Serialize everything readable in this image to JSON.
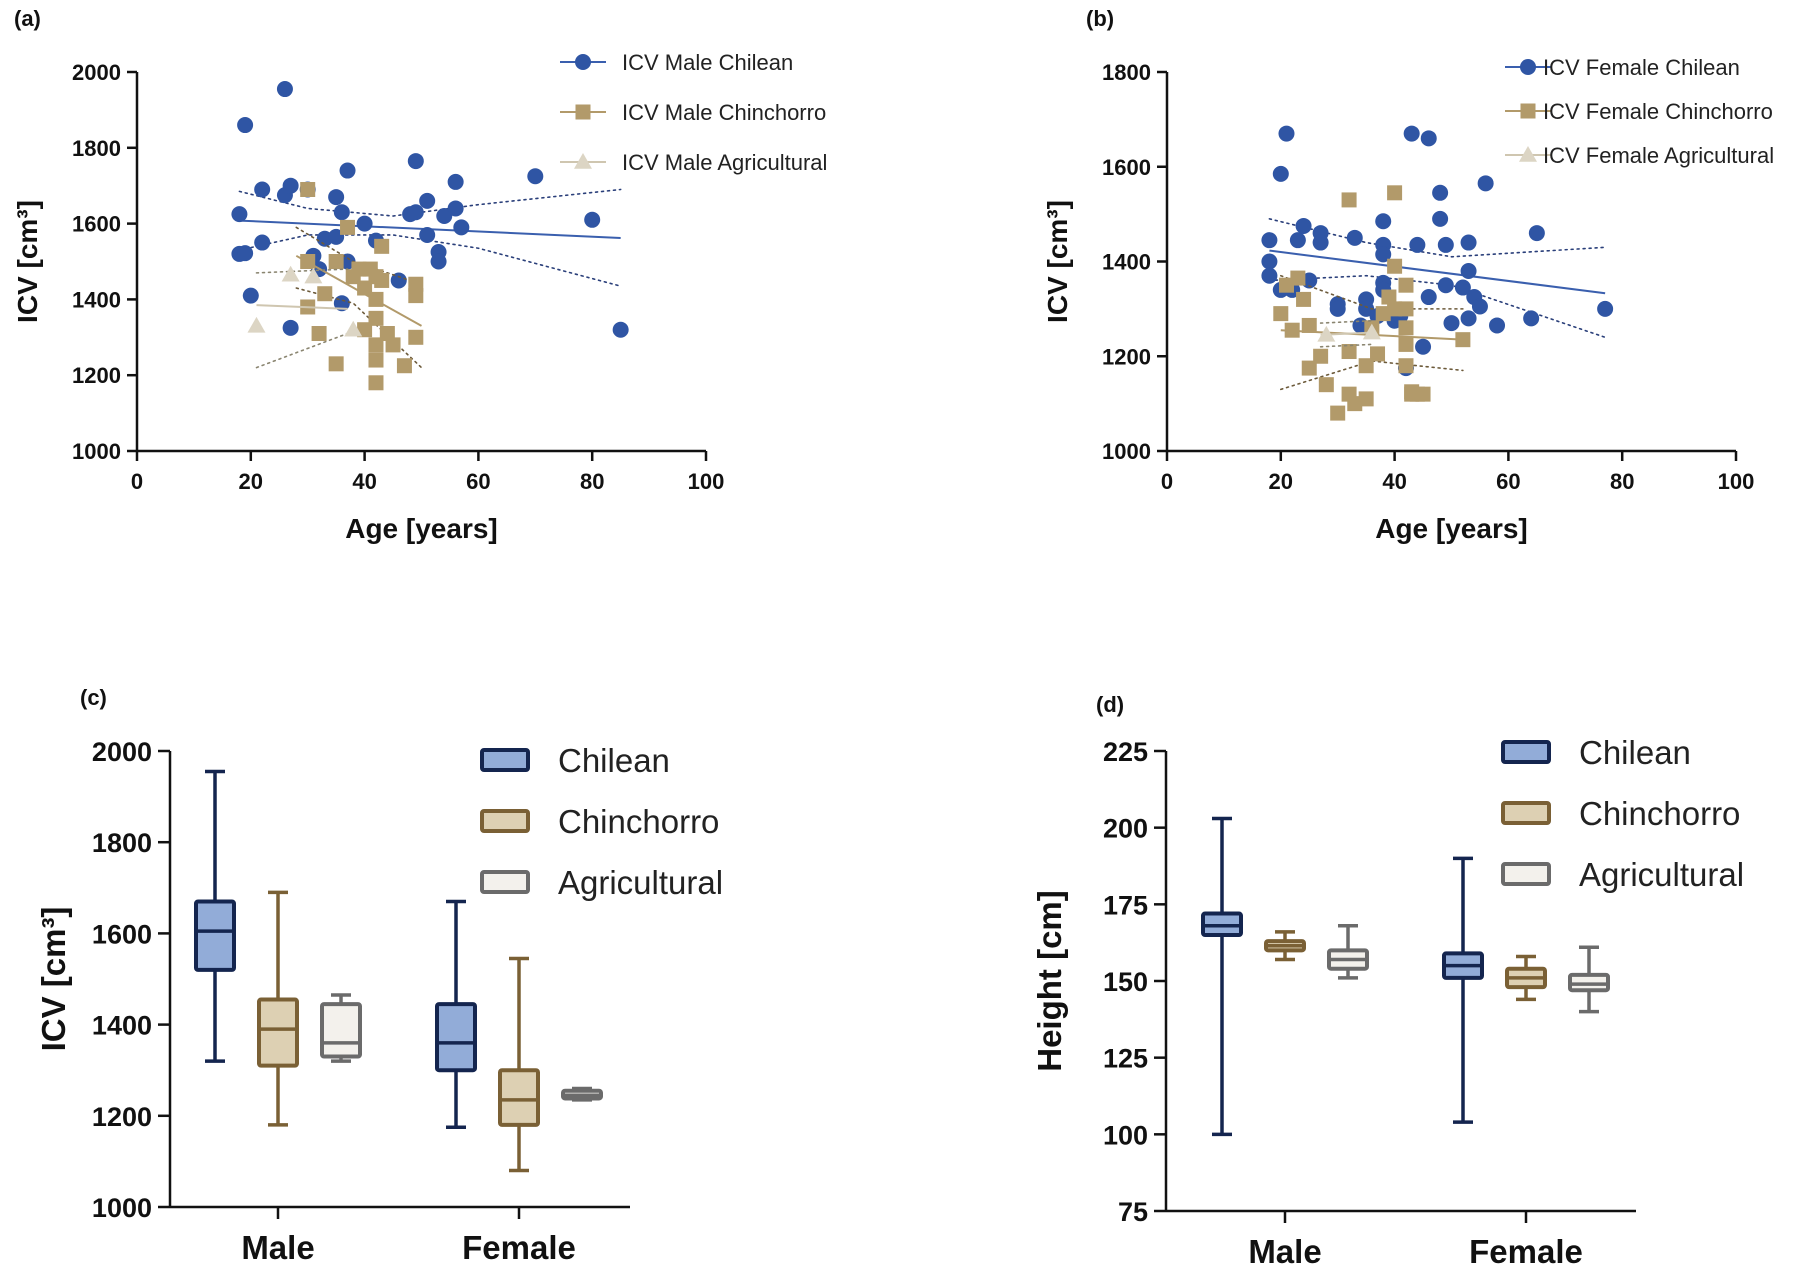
{
  "chart_data": [
    {
      "panel": "(a)",
      "type": "scatter",
      "xlabel": "Age [years]",
      "ylabel": "ICV [cm³]",
      "xlim": [
        0,
        100
      ],
      "ylim": [
        1000,
        2000
      ],
      "xticks": [
        0,
        20,
        40,
        60,
        80,
        100
      ],
      "yticks": [
        1000,
        1200,
        1400,
        1600,
        1800,
        2000
      ],
      "legend_position": "top-right",
      "series": [
        {
          "name": "ICV Male Chilean",
          "marker": "circle",
          "color": "#2f55a4",
          "fit": [
            [
              18,
              1608
            ],
            [
              85,
              1562
            ]
          ],
          "ci_upper": [
            [
              18,
              1685
            ],
            [
              30,
              1640
            ],
            [
              45,
              1620
            ],
            [
              60,
              1650
            ],
            [
              85,
              1690
            ]
          ],
          "ci_lower": [
            [
              18,
              1530
            ],
            [
              30,
              1570
            ],
            [
              45,
              1570
            ],
            [
              60,
              1535
            ],
            [
              85,
              1435
            ]
          ],
          "points": [
            [
              18,
              1625
            ],
            [
              19,
              1860
            ],
            [
              18,
              1520
            ],
            [
              19,
              1522
            ],
            [
              20,
              1410
            ],
            [
              22,
              1690
            ],
            [
              22,
              1550
            ],
            [
              26,
              1955
            ],
            [
              26,
              1675
            ],
            [
              27,
              1700
            ],
            [
              27,
              1325
            ],
            [
              30,
              1690
            ],
            [
              31,
              1515
            ],
            [
              32,
              1480
            ],
            [
              33,
              1560
            ],
            [
              35,
              1670
            ],
            [
              35,
              1565
            ],
            [
              36,
              1630
            ],
            [
              36,
              1390
            ],
            [
              37,
              1740
            ],
            [
              37,
              1500
            ],
            [
              40,
              1600
            ],
            [
              42,
              1555
            ],
            [
              46,
              1450
            ],
            [
              48,
              1625
            ],
            [
              49,
              1630
            ],
            [
              49,
              1765
            ],
            [
              51,
              1570
            ],
            [
              51,
              1660
            ],
            [
              53,
              1525
            ],
            [
              53,
              1500
            ],
            [
              54,
              1620
            ],
            [
              56,
              1710
            ],
            [
              56,
              1640
            ],
            [
              57,
              1590
            ],
            [
              70,
              1725
            ],
            [
              80,
              1610
            ],
            [
              85,
              1320
            ]
          ]
        },
        {
          "name": "ICV Male Chinchorro",
          "marker": "square",
          "color": "#b29a6a",
          "fit": [
            [
              28,
              1515
            ],
            [
              50,
              1330
            ]
          ],
          "ci_upper": [
            [
              28,
              1590
            ],
            [
              38,
              1500
            ],
            [
              50,
              1440
            ]
          ],
          "ci_lower": [
            [
              28,
              1430
            ],
            [
              38,
              1390
            ],
            [
              50,
              1220
            ]
          ],
          "points": [
            [
              30,
              1690
            ],
            [
              30,
              1500
            ],
            [
              30,
              1380
            ],
            [
              32,
              1310
            ],
            [
              33,
              1415
            ],
            [
              35,
              1500
            ],
            [
              35,
              1230
            ],
            [
              37,
              1590
            ],
            [
              38,
              1460
            ],
            [
              39,
              1480
            ],
            [
              40,
              1430
            ],
            [
              40,
              1320
            ],
            [
              41,
              1480
            ],
            [
              42,
              1460
            ],
            [
              42,
              1400
            ],
            [
              42,
              1350
            ],
            [
              42,
              1280
            ],
            [
              42,
              1240
            ],
            [
              42,
              1180
            ],
            [
              43,
              1540
            ],
            [
              43,
              1450
            ],
            [
              44,
              1310
            ],
            [
              45,
              1280
            ],
            [
              47,
              1225
            ],
            [
              49,
              1440
            ],
            [
              49,
              1410
            ],
            [
              49,
              1300
            ]
          ]
        },
        {
          "name": "ICV Male Agricultural",
          "marker": "triangle",
          "color": "#dcd5c4",
          "fit": [
            [
              21,
              1385
            ],
            [
              37,
              1375
            ]
          ],
          "ci_upper": [
            [
              21,
              1470
            ],
            [
              37,
              1480
            ]
          ],
          "ci_lower": [
            [
              21,
              1220
            ],
            [
              37,
              1310
            ]
          ],
          "points": [
            [
              21,
              1330
            ],
            [
              27,
              1465
            ],
            [
              31,
              1460
            ],
            [
              38,
              1320
            ]
          ]
        }
      ]
    },
    {
      "panel": "(b)",
      "type": "scatter",
      "xlabel": "Age [years]",
      "ylabel": "ICV [cm³]",
      "xlim": [
        0,
        100
      ],
      "ylim": [
        1000,
        1800
      ],
      "xticks": [
        0,
        20,
        40,
        60,
        80,
        100
      ],
      "yticks": [
        1000,
        1200,
        1400,
        1600,
        1800
      ],
      "legend_position": "top-right",
      "series": [
        {
          "name": "ICV Female Chilean",
          "marker": "circle",
          "color": "#2f55a4",
          "fit": [
            [
              18,
              1423
            ],
            [
              77,
              1333
            ]
          ],
          "ci_upper": [
            [
              18,
              1490
            ],
            [
              35,
              1440
            ],
            [
              50,
              1410
            ],
            [
              77,
              1430
            ]
          ],
          "ci_lower": [
            [
              18,
              1360
            ],
            [
              35,
              1370
            ],
            [
              50,
              1350
            ],
            [
              77,
              1240
            ]
          ],
          "points": [
            [
              18,
              1445
            ],
            [
              18,
              1400
            ],
            [
              18,
              1370
            ],
            [
              20,
              1340
            ],
            [
              20,
              1585
            ],
            [
              21,
              1670
            ],
            [
              22,
              1340
            ],
            [
              23,
              1445
            ],
            [
              24,
              1475
            ],
            [
              25,
              1360
            ],
            [
              27,
              1460
            ],
            [
              27,
              1440
            ],
            [
              30,
              1310
            ],
            [
              30,
              1300
            ],
            [
              33,
              1450
            ],
            [
              34,
              1265
            ],
            [
              35,
              1320
            ],
            [
              35,
              1300
            ],
            [
              37,
              1285
            ],
            [
              38,
              1485
            ],
            [
              38,
              1435
            ],
            [
              38,
              1415
            ],
            [
              38,
              1355
            ],
            [
              38,
              1340
            ],
            [
              40,
              1275
            ],
            [
              41,
              1285
            ],
            [
              42,
              1175
            ],
            [
              43,
              1670
            ],
            [
              44,
              1435
            ],
            [
              45,
              1220
            ],
            [
              46,
              1660
            ],
            [
              46,
              1325
            ],
            [
              48,
              1545
            ],
            [
              48,
              1490
            ],
            [
              49,
              1435
            ],
            [
              49,
              1350
            ],
            [
              50,
              1270
            ],
            [
              52,
              1345
            ],
            [
              53,
              1440
            ],
            [
              53,
              1380
            ],
            [
              53,
              1280
            ],
            [
              54,
              1325
            ],
            [
              55,
              1305
            ],
            [
              56,
              1565
            ],
            [
              58,
              1265
            ],
            [
              64,
              1280
            ],
            [
              65,
              1460
            ],
            [
              77,
              1300
            ]
          ]
        },
        {
          "name": "ICV Female Chinchorro",
          "marker": "square",
          "color": "#b29a6a",
          "fit": [
            [
              20,
              1255
            ],
            [
              52,
              1235
            ]
          ],
          "ci_upper": [
            [
              20,
              1370
            ],
            [
              36,
              1300
            ],
            [
              52,
              1300
            ]
          ],
          "ci_lower": [
            [
              20,
              1130
            ],
            [
              36,
              1190
            ],
            [
              52,
              1170
            ]
          ],
          "points": [
            [
              20,
              1290
            ],
            [
              21,
              1350
            ],
            [
              22,
              1255
            ],
            [
              23,
              1365
            ],
            [
              24,
              1320
            ],
            [
              25,
              1175
            ],
            [
              25,
              1265
            ],
            [
              27,
              1200
            ],
            [
              28,
              1140
            ],
            [
              30,
              1080
            ],
            [
              32,
              1530
            ],
            [
              32,
              1210
            ],
            [
              32,
              1120
            ],
            [
              33,
              1100
            ],
            [
              35,
              1180
            ],
            [
              35,
              1110
            ],
            [
              36,
              1260
            ],
            [
              37,
              1205
            ],
            [
              38,
              1290
            ],
            [
              39,
              1325
            ],
            [
              40,
              1545
            ],
            [
              40,
              1390
            ],
            [
              40,
              1300
            ],
            [
              42,
              1350
            ],
            [
              42,
              1300
            ],
            [
              42,
              1260
            ],
            [
              42,
              1225
            ],
            [
              42,
              1180
            ],
            [
              43,
              1125
            ],
            [
              43,
              1120
            ],
            [
              44,
              1120
            ],
            [
              45,
              1120
            ],
            [
              52,
              1235
            ]
          ]
        },
        {
          "name": "ICV Female Agricultural",
          "marker": "triangle",
          "color": "#dcd5c4",
          "fit": [
            [
              27,
              1245
            ],
            [
              36,
              1250
            ]
          ],
          "ci_upper": [
            [
              27,
              1270
            ],
            [
              36,
              1275
            ]
          ],
          "ci_lower": [
            [
              27,
              1220
            ],
            [
              36,
              1225
            ]
          ],
          "points": [
            [
              28,
              1245
            ],
            [
              36,
              1250
            ]
          ]
        }
      ]
    },
    {
      "panel": "(c)",
      "type": "box",
      "xlabel": "",
      "ylabel": "ICV [cm³]",
      "ylim": [
        1000,
        2000
      ],
      "yticks": [
        1000,
        1200,
        1400,
        1600,
        1800,
        2000
      ],
      "categories": [
        "Male",
        "Female"
      ],
      "legend_position": "top-right",
      "series": [
        {
          "name": "Chilean",
          "edge": "#14254f",
          "fill": "#92acd8",
          "boxes": [
            {
              "min": 1320,
              "q1": 1520,
              "median": 1605,
              "q3": 1670,
              "max": 1955
            },
            {
              "min": 1175,
              "q1": 1300,
              "median": 1360,
              "q3": 1445,
              "max": 1670
            }
          ]
        },
        {
          "name": "Chinchorro",
          "edge": "#7a6035",
          "fill": "#ddd0b3",
          "boxes": [
            {
              "min": 1180,
              "q1": 1310,
              "median": 1390,
              "q3": 1455,
              "max": 1690
            },
            {
              "min": 1080,
              "q1": 1180,
              "median": 1235,
              "q3": 1300,
              "max": 1545
            }
          ]
        },
        {
          "name": "Agricultural",
          "edge": "#6b6b6b",
          "fill": "#f3f1ec",
          "boxes": [
            {
              "min": 1320,
              "q1": 1330,
              "median": 1360,
              "q3": 1445,
              "max": 1465
            },
            {
              "min": 1235,
              "q1": 1238,
              "median": 1245,
              "q3": 1255,
              "max": 1260
            }
          ]
        }
      ]
    },
    {
      "panel": "(d)",
      "type": "box",
      "xlabel": "",
      "ylabel": "Height [cm]",
      "ylim": [
        75,
        225
      ],
      "yticks": [
        75,
        100,
        125,
        150,
        175,
        200,
        225
      ],
      "categories": [
        "Male",
        "Female"
      ],
      "legend_position": "top-right",
      "series": [
        {
          "name": "Chilean",
          "edge": "#14254f",
          "fill": "#92acd8",
          "boxes": [
            {
              "min": 100,
              "q1": 165,
              "median": 168,
              "q3": 172,
              "max": 203
            },
            {
              "min": 104,
              "q1": 151,
              "median": 155,
              "q3": 159,
              "max": 190
            }
          ]
        },
        {
          "name": "Chinchorro",
          "edge": "#7a6035",
          "fill": "#ddd0b3",
          "boxes": [
            {
              "min": 157,
              "q1": 160,
              "median": 161.5,
              "q3": 163,
              "max": 166
            },
            {
              "min": 144,
              "q1": 148,
              "median": 151,
              "q3": 154,
              "max": 158
            }
          ]
        },
        {
          "name": "Agricultural",
          "edge": "#6b6b6b",
          "fill": "#f3f1ec",
          "boxes": [
            {
              "min": 151,
              "q1": 154,
              "median": 157,
              "q3": 160,
              "max": 168
            },
            {
              "min": 140,
              "q1": 147,
              "median": 149,
              "q3": 152,
              "max": 161
            }
          ]
        }
      ]
    }
  ]
}
